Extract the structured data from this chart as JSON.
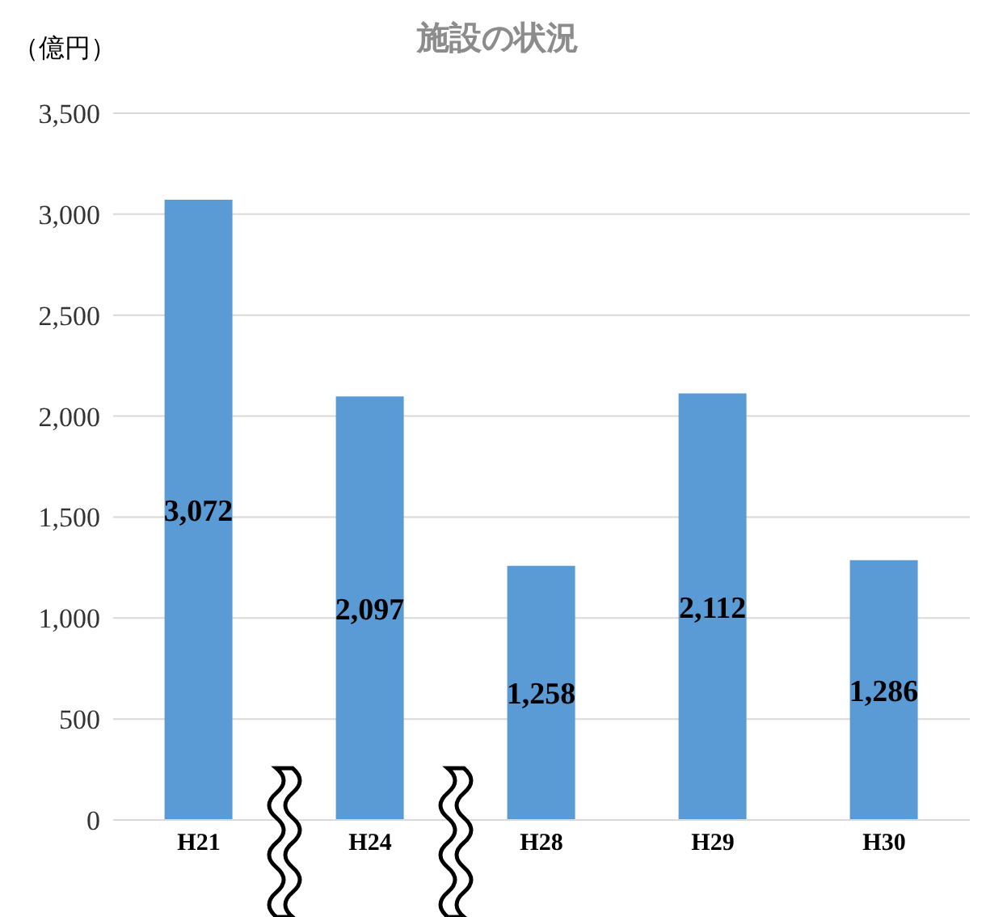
{
  "chart_data": {
    "type": "bar",
    "title": "施設の状況",
    "ylabel": "（億円）",
    "categories": [
      "H21",
      "H24",
      "H28",
      "H29",
      "H30"
    ],
    "values": [
      3072,
      2097,
      1258,
      2112,
      1286
    ],
    "value_labels": [
      "3,072",
      "2,097",
      "1,258",
      "2,112",
      "1,286"
    ],
    "color": "#5b9bd5",
    "ylim": [
      0,
      3500
    ],
    "yticks": [
      0,
      500,
      {
        "value": 1000,
        "label": "1,000"
      },
      {
        "value": 1500,
        "label": "1,500"
      },
      {
        "value": 2000,
        "label": "2,000"
      },
      {
        "value": 2500,
        "label": "2,500"
      },
      {
        "value": 3000,
        "label": "3,000"
      },
      {
        "value": 3500,
        "label": "3,500"
      }
    ],
    "grid": "y"
  }
}
